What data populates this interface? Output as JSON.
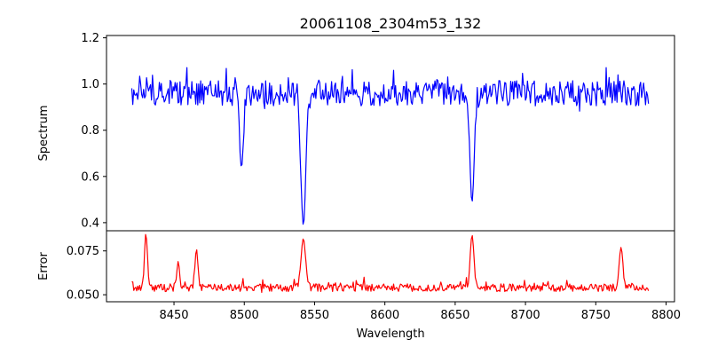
{
  "chart_data": {
    "type": "line",
    "title": "20061108_2304m53_132",
    "xlabel": "Wavelength",
    "xlim": [
      8402,
      8806
    ],
    "xticks": [
      8450,
      8500,
      8550,
      8600,
      8650,
      8700,
      8750,
      8800
    ],
    "x_range": [
      8420,
      8788
    ],
    "panels": [
      {
        "name": "spectrum",
        "ylabel": "Spectrum",
        "ylim": [
          0.365,
          1.21
        ],
        "yticks": [
          0.4,
          0.6,
          0.8,
          1.0,
          1.2
        ],
        "tick_labels": [
          "0.4",
          "0.6",
          "0.8",
          "1.0",
          "1.2"
        ],
        "line_color": "#0000ff",
        "baseline": 0.96,
        "features": [
          {
            "center": 8498,
            "width": 1.4,
            "value": 0.64
          },
          {
            "center": 8542,
            "width": 1.8,
            "value": 0.39
          },
          {
            "center": 8662,
            "width": 1.6,
            "value": 0.49
          }
        ]
      },
      {
        "name": "error",
        "ylabel": "Error",
        "ylim": [
          0.046,
          0.0865
        ],
        "yticks": [
          0.05,
          0.075
        ],
        "tick_labels": [
          "0.050",
          "0.075"
        ],
        "line_color": "#ff0000",
        "baseline": 0.054,
        "features": [
          {
            "center": 8430,
            "width": 1.0,
            "value": 0.085
          },
          {
            "center": 8453,
            "width": 1.0,
            "value": 0.069
          },
          {
            "center": 8466,
            "width": 1.0,
            "value": 0.076
          },
          {
            "center": 8542,
            "width": 1.6,
            "value": 0.082
          },
          {
            "center": 8662,
            "width": 1.3,
            "value": 0.084
          },
          {
            "center": 8768,
            "width": 1.3,
            "value": 0.077
          }
        ]
      }
    ]
  }
}
